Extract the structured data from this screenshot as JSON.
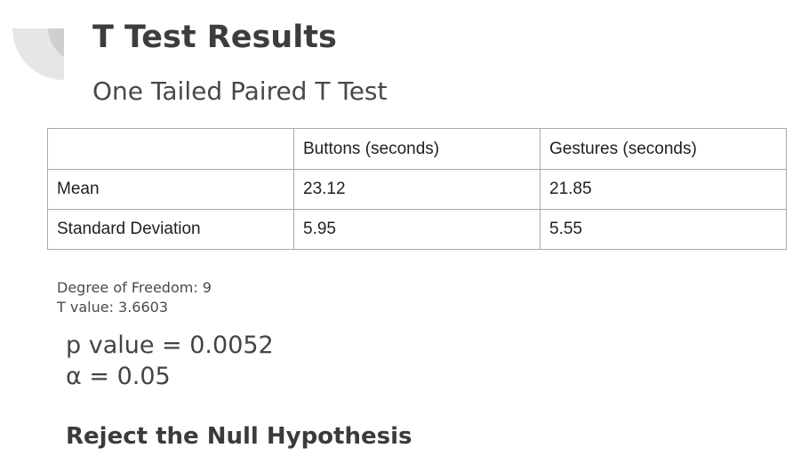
{
  "header": {
    "title": "T Test Results",
    "subtitle": "One Tailed Paired T Test"
  },
  "table": {
    "columns": [
      "",
      "Buttons (seconds)",
      "Gestures (seconds)"
    ],
    "rows": [
      {
        "label": "Mean",
        "buttons": "23.12",
        "gestures": "21.85"
      },
      {
        "label": "Standard Deviation",
        "buttons": "5.95",
        "gestures": "5.55"
      }
    ]
  },
  "stats": {
    "degree_of_freedom": "Degree of Freedom: 9",
    "t_value": "T value: 3.6603",
    "p_value": "p value = 0.0052",
    "alpha": "α = 0.05"
  },
  "conclusion": "Reject the Null Hypothesis",
  "colors": {
    "decor_arc_outer": "#e6e6e6",
    "decor_arc_inner": "#cfcfcf",
    "table_border": "#a9a9a9"
  }
}
